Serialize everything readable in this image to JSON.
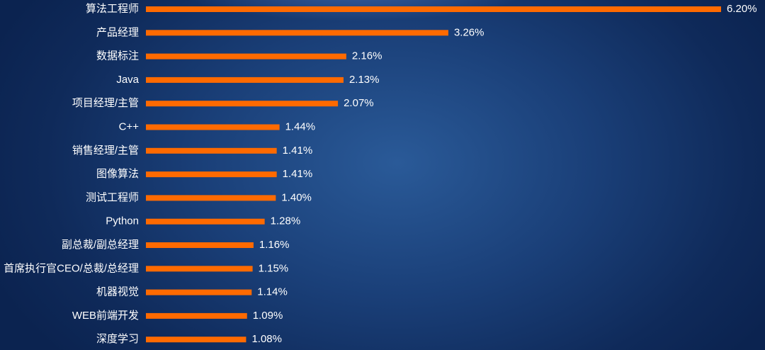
{
  "chart_data": {
    "type": "bar",
    "orientation": "horizontal",
    "categories": [
      "算法工程师",
      "产品经理",
      "数据标注",
      "Java",
      "项目经理/主管",
      "C++",
      "销售经理/主管",
      "图像算法",
      "测试工程师",
      "Python",
      "副总裁/副总经理",
      "首席执行官CEO/总裁/总经理",
      "机器视觉",
      "WEB前端开发",
      "深度学习"
    ],
    "values": [
      6.2,
      3.26,
      2.16,
      2.13,
      2.07,
      1.44,
      1.41,
      1.41,
      1.4,
      1.28,
      1.16,
      1.15,
      1.14,
      1.09,
      1.08
    ],
    "value_labels": [
      "6.20%",
      "3.26%",
      "2.16%",
      "2.13%",
      "2.07%",
      "1.44%",
      "1.41%",
      "1.41%",
      "1.40%",
      "1.28%",
      "1.16%",
      "1.15%",
      "1.14%",
      "1.09%",
      "1.08%"
    ],
    "unit": "%",
    "bar_color": "#ff6a00",
    "grid": false,
    "legend": "none"
  }
}
